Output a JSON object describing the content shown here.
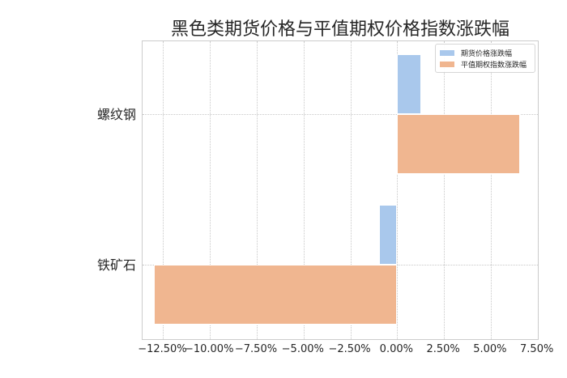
{
  "chart_data": {
    "type": "bar",
    "orientation": "horizontal",
    "title": "黑色类期货价格与平值期权价格指数涨跌幅",
    "xlabel": "",
    "ylabel": "",
    "categories": [
      "螺纹钢",
      "铁矿石"
    ],
    "series": [
      {
        "name": "期货价格涨跌幅",
        "color": "#a9c8ec",
        "values": [
          1.28,
          -0.97
        ]
      },
      {
        "name": "平值期权指数涨跌幅",
        "color": "#f0b690",
        "values": [
          6.55,
          -13.0
        ]
      }
    ],
    "xlim": [
      -13.6,
      7.6
    ],
    "xticks": [
      -12.5,
      -10.0,
      -7.5,
      -5.0,
      -2.5,
      0.0,
      2.5,
      5.0,
      7.5
    ],
    "xtick_labels": [
      "−12.50%",
      "−10.00%",
      "−7.50%",
      "−5.00%",
      "−2.50%",
      "0.00%",
      "2.50%",
      "5.00%",
      "7.50%"
    ],
    "grid": true,
    "legend_position": "upper right"
  }
}
